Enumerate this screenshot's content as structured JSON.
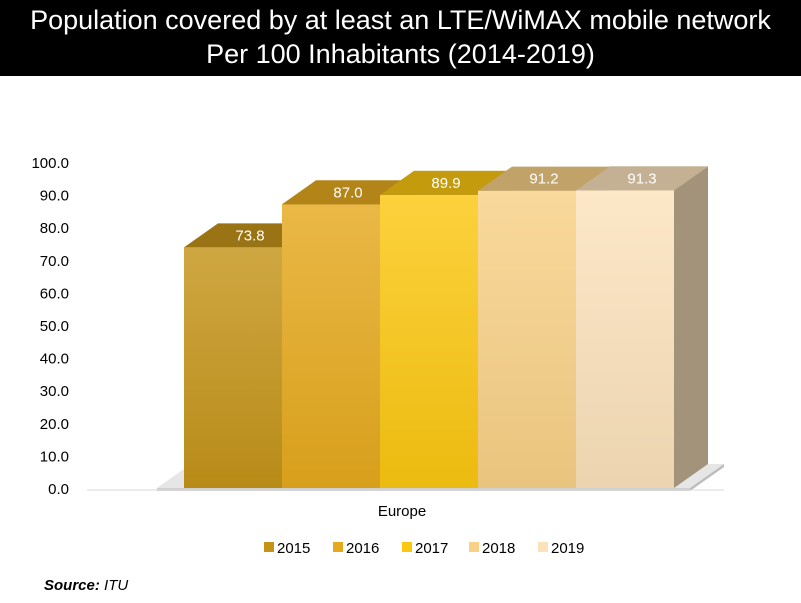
{
  "title": "Population covered by at least an LTE/WiMAX mobile network",
  "subtitle": "Per 100 Inhabitants (2014-2019)",
  "source_label": "Source:",
  "source_value": "ITU",
  "chart_data": {
    "type": "bar",
    "categories": [
      "Europe"
    ],
    "series": [
      {
        "name": "2015",
        "values": [
          73.8
        ],
        "color": "#c49419"
      },
      {
        "name": "2016",
        "values": [
          87.0
        ],
        "color": "#e5a91d"
      },
      {
        "name": "2017",
        "values": [
          89.9
        ],
        "color": "#fbc711"
      },
      {
        "name": "2018",
        "values": [
          91.2
        ],
        "color": "#f8d186"
      },
      {
        "name": "2019",
        "values": [
          91.3
        ],
        "color": "#fbe2bb"
      }
    ],
    "yticks": [
      "0.0",
      "10.0",
      "20.0",
      "30.0",
      "40.0",
      "50.0",
      "60.0",
      "70.0",
      "80.0",
      "90.0",
      "100.0"
    ],
    "ylim": [
      0,
      100
    ],
    "grid": false,
    "legend": "bottom",
    "style": "3d-clustered-column"
  }
}
